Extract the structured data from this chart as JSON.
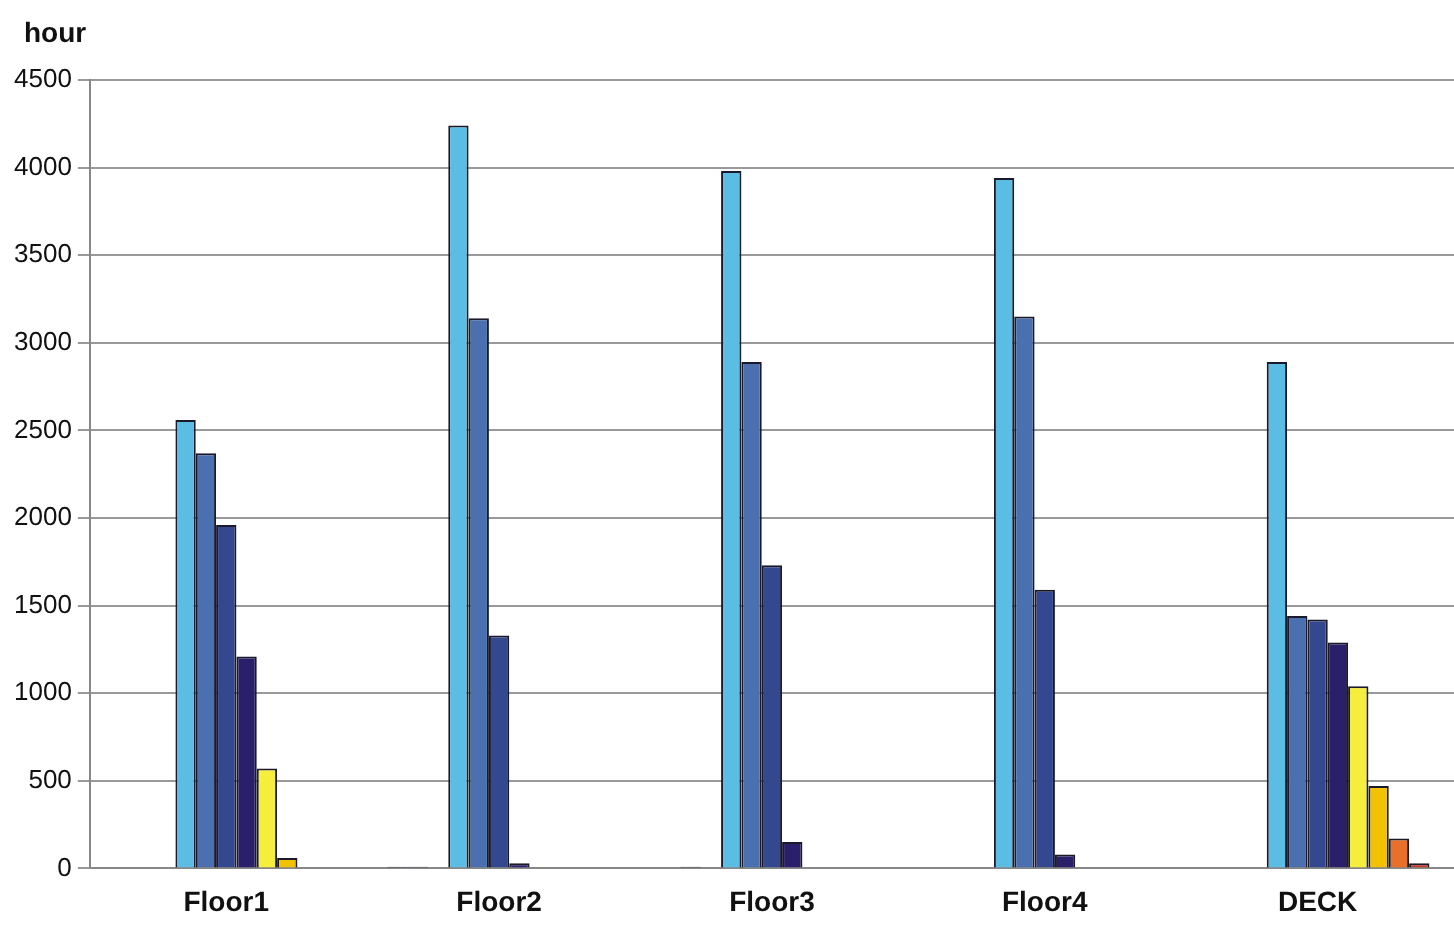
{
  "chart_data": {
    "type": "bar",
    "ylabel": "hour",
    "categories": [
      "Floor1",
      "Floor2",
      "Floor3",
      "Floor4",
      "DECK"
    ],
    "series": [
      {
        "color": "#222244",
        "values": [
          null,
          10,
          null,
          null,
          null
        ]
      },
      {
        "color": "#2a2a55",
        "values": [
          null,
          10,
          10,
          null,
          null
        ]
      },
      {
        "color": "#888888",
        "values": [
          null,
          null,
          null,
          null,
          null
        ]
      },
      {
        "color": "#5bbde4",
        "values": [
          2560,
          4240,
          3980,
          3940,
          2890
        ]
      },
      {
        "color": "#4a70b0",
        "values": [
          2370,
          3140,
          2890,
          3150,
          1440
        ]
      },
      {
        "color": "#34488f",
        "values": [
          1960,
          1330,
          1730,
          1590,
          1420
        ]
      },
      {
        "color": "#2a1f6b",
        "values": [
          1210,
          30,
          150,
          80,
          1290
        ]
      },
      {
        "color": "#f5ee3c",
        "values": [
          570,
          null,
          null,
          null,
          1040
        ]
      },
      {
        "color": "#f2c200",
        "values": [
          60,
          null,
          null,
          null,
          470
        ]
      },
      {
        "color": "#e8702a",
        "values": [
          null,
          null,
          null,
          null,
          170
        ]
      },
      {
        "color": "#c0392b",
        "values": [
          null,
          null,
          null,
          null,
          30
        ]
      }
    ],
    "ylim": [
      0,
      4500
    ],
    "yticks": [
      0,
      500,
      1000,
      1500,
      2000,
      2500,
      3000,
      3500,
      4000,
      4500
    ],
    "grid": "y",
    "legend": false
  }
}
